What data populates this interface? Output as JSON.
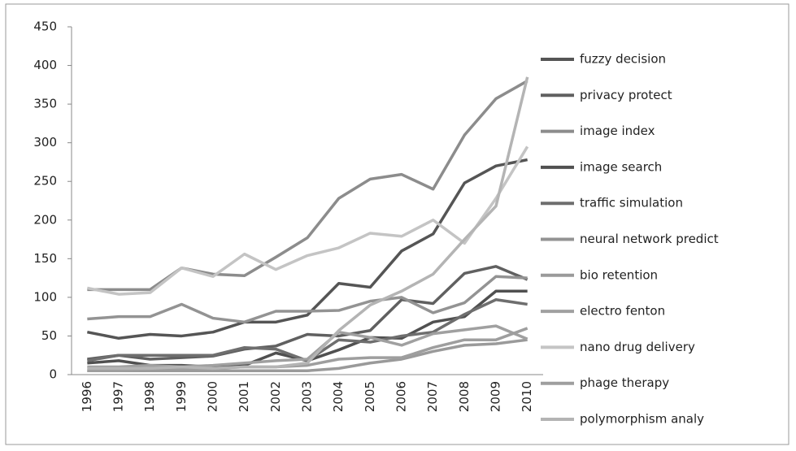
{
  "chart_data": {
    "type": "line",
    "categories": [
      "1996",
      "1997",
      "1998",
      "1999",
      "2000",
      "2001",
      "2002",
      "2003",
      "2004",
      "2005",
      "2006",
      "2007",
      "2008",
      "2009",
      "2010"
    ],
    "ylim": [
      0,
      450
    ],
    "yticks": [
      0,
      50,
      100,
      150,
      200,
      250,
      300,
      350,
      400,
      450
    ],
    "series": [
      {
        "name": "fuzzy decision",
        "color": "#555555",
        "values": [
          55,
          47,
          52,
          50,
          55,
          68,
          68,
          77,
          118,
          113,
          160,
          182,
          248,
          270,
          278
        ]
      },
      {
        "name": "privacy protect",
        "color": "#606060",
        "values": [
          20,
          25,
          20,
          22,
          24,
          33,
          37,
          52,
          50,
          57,
          97,
          92,
          131,
          140,
          123
        ]
      },
      {
        "name": "image index",
        "color": "#8c8c8c",
        "values": [
          110,
          110,
          110,
          138,
          130,
          128,
          152,
          177,
          228,
          253,
          259,
          240,
          310,
          357,
          380
        ]
      },
      {
        "name": "image search",
        "color": "#505050",
        "values": [
          15,
          18,
          12,
          12,
          10,
          12,
          28,
          18,
          32,
          48,
          47,
          68,
          75,
          108,
          108
        ]
      },
      {
        "name": "traffic simulation",
        "color": "#6e6e6e",
        "values": [
          18,
          25,
          25,
          25,
          25,
          35,
          33,
          18,
          45,
          42,
          50,
          55,
          78,
          97,
          91
        ]
      },
      {
        "name": "neural network predict",
        "color": "#939393",
        "values": [
          72,
          75,
          75,
          91,
          73,
          68,
          82,
          82,
          83,
          95,
          100,
          80,
          93,
          127,
          125
        ]
      },
      {
        "name": "bio retention",
        "color": "#9a9a9a",
        "values": [
          5,
          5,
          5,
          5,
          5,
          5,
          5,
          5,
          8,
          15,
          20,
          30,
          38,
          40,
          45
        ]
      },
      {
        "name": "electro fenton",
        "color": "#a0a0a0",
        "values": [
          10,
          10,
          12,
          10,
          12,
          15,
          18,
          20,
          55,
          48,
          38,
          53,
          58,
          63,
          46
        ]
      },
      {
        "name": "nano drug delivery",
        "color": "#c4c4c4",
        "values": [
          112,
          104,
          106,
          138,
          127,
          156,
          136,
          154,
          164,
          183,
          179,
          200,
          170,
          228,
          295
        ]
      },
      {
        "name": "phage therapy",
        "color": "#9e9e9e",
        "values": [
          5,
          5,
          8,
          8,
          8,
          10,
          10,
          12,
          20,
          22,
          22,
          35,
          45,
          45,
          60
        ]
      },
      {
        "name": "polymorphism analy",
        "color": "#b4b4b4",
        "values": [
          8,
          8,
          8,
          10,
          8,
          10,
          10,
          15,
          57,
          90,
          108,
          130,
          175,
          218,
          385
        ]
      }
    ]
  }
}
